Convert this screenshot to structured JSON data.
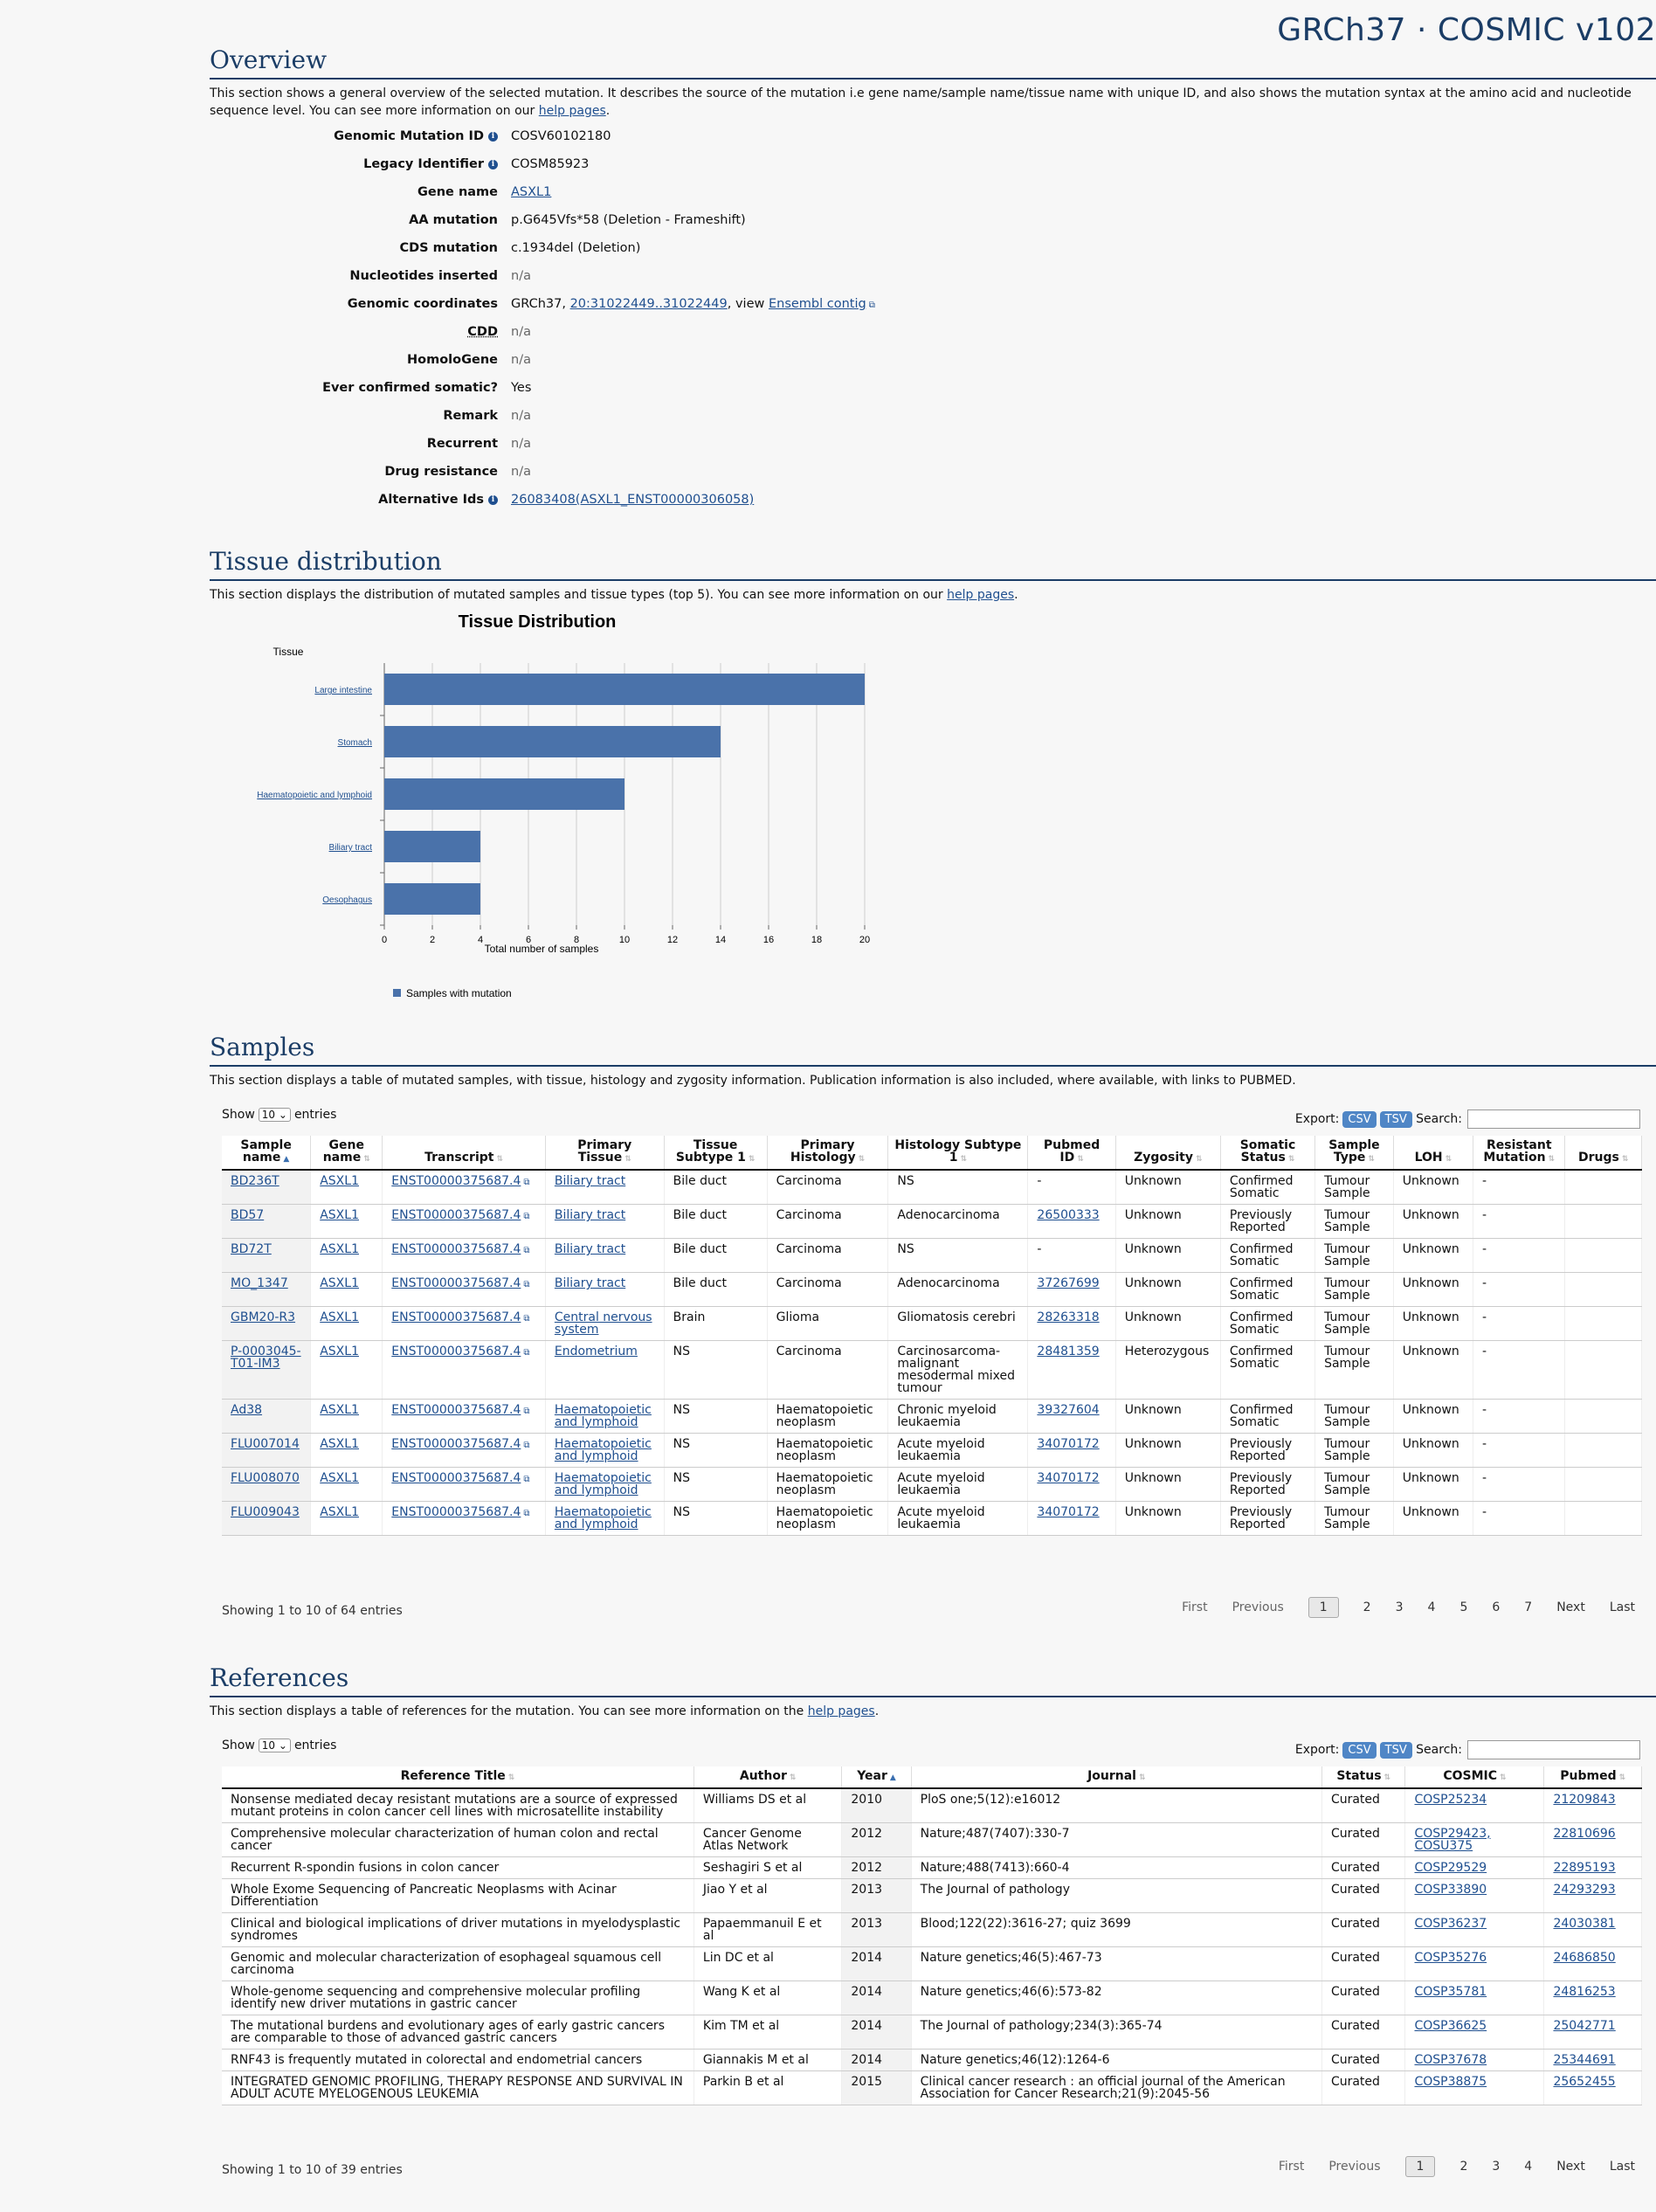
{
  "brand": "GRCh37 · COSMIC v102",
  "overview": {
    "title": "Overview",
    "desc_1": "This section shows a general overview of the selected mutation. It describes the source of the mutation i.e gene name/sample name/tissue name with unique ID, and also shows the mutation syntax at the amino acid and nucleotide sequence level. You can see more information on our ",
    "help_link": "help pages",
    "desc_end": ".",
    "rows": {
      "genomic_mutation_id": {
        "label": "Genomic Mutation ID",
        "value": "COSV60102180"
      },
      "legacy_identifier": {
        "label": "Legacy Identifier",
        "value": "COSM85923"
      },
      "gene_name": {
        "label": "Gene name",
        "value": "ASXL1"
      },
      "aa_mutation": {
        "label": "AA mutation",
        "value": "p.G645Vfs*58 (Deletion - Frameshift)"
      },
      "cds_mutation": {
        "label": "CDS mutation",
        "value": "c.1934del (Deletion)"
      },
      "nucleotides_inserted": {
        "label": "Nucleotides inserted",
        "value": "n/a"
      },
      "genomic_coordinates": {
        "label": "Genomic coordinates",
        "prefix": "GRCh37, ",
        "coord_link": "20:31022449..31022449",
        "mid": ", view ",
        "ensembl_link": "Ensembl contig"
      },
      "cdd": {
        "label": "CDD",
        "value": "n/a"
      },
      "homologene": {
        "label": "HomoloGene",
        "value": "n/a"
      },
      "ever_confirmed": {
        "label": "Ever confirmed somatic?",
        "value": "Yes"
      },
      "remark": {
        "label": "Remark",
        "value": "n/a"
      },
      "recurrent": {
        "label": "Recurrent",
        "value": "n/a"
      },
      "drug_resistance": {
        "label": "Drug resistance",
        "value": "n/a"
      },
      "alternative_ids": {
        "label": "Alternative Ids",
        "value": "26083408(ASXL1_ENST00000306058)"
      }
    }
  },
  "tissue": {
    "title": "Tissue distribution",
    "desc": "This section displays the distribution of mutated samples and tissue types (top 5). You can see more information on our ",
    "help_link": "help pages",
    "desc_end": "."
  },
  "chart_data": {
    "type": "bar",
    "orientation": "horizontal",
    "title": "Tissue Distribution",
    "ylabel": "Tissue",
    "xlabel": "Total number of samples",
    "categories": [
      "Large intestine",
      "Stomach",
      "Haematopoietic and lymphoid",
      "Biliary tract",
      "Oesophagus"
    ],
    "series": [
      {
        "name": "Samples with mutation",
        "values": [
          20,
          14,
          10,
          4,
          4
        ]
      }
    ],
    "xlim": [
      0,
      20
    ],
    "xticks": [
      0,
      2,
      4,
      6,
      8,
      10,
      12,
      14,
      16,
      18,
      20
    ],
    "grid": true,
    "legend": "bottom-left",
    "color": "#4a72aa"
  },
  "samples": {
    "title": "Samples",
    "desc": "This section displays a table of mutated samples, with tissue, histology and zygosity information. Publication information is also included, where available, with links to PUBMED.",
    "show": "Show",
    "entries": "entries",
    "page_size": "10",
    "export": "Export:",
    "csv": "CSV",
    "tsv": "TSV",
    "search": "Search:",
    "headers": [
      "Sample name",
      "Gene name",
      "Transcript",
      "Primary Tissue",
      "Tissue Subtype 1",
      "Primary Histology",
      "Histology Subtype 1",
      "Pubmed ID",
      "Zygosity",
      "Somatic Status",
      "Sample Type",
      "LOH",
      "Resistant Mutation",
      "Drugs"
    ],
    "rows": [
      [
        "BD236T",
        "ASXL1",
        "ENST00000375687.4",
        "Biliary tract",
        "Bile duct",
        "Carcinoma",
        "NS",
        "-",
        "Unknown",
        "Confirmed Somatic",
        "Tumour Sample",
        "Unknown",
        "-",
        ""
      ],
      [
        "BD57",
        "ASXL1",
        "ENST00000375687.4",
        "Biliary tract",
        "Bile duct",
        "Carcinoma",
        "Adenocarcinoma",
        "26500333",
        "Unknown",
        "Previously Reported",
        "Tumour Sample",
        "Unknown",
        "-",
        ""
      ],
      [
        "BD72T",
        "ASXL1",
        "ENST00000375687.4",
        "Biliary tract",
        "Bile duct",
        "Carcinoma",
        "NS",
        "-",
        "Unknown",
        "Confirmed Somatic",
        "Tumour Sample",
        "Unknown",
        "-",
        ""
      ],
      [
        "MO_1347",
        "ASXL1",
        "ENST00000375687.4",
        "Biliary tract",
        "Bile duct",
        "Carcinoma",
        "Adenocarcinoma",
        "37267699",
        "Unknown",
        "Confirmed Somatic",
        "Tumour Sample",
        "Unknown",
        "-",
        ""
      ],
      [
        "GBM20-R3",
        "ASXL1",
        "ENST00000375687.4",
        "Central nervous system",
        "Brain",
        "Glioma",
        "Gliomatosis cerebri",
        "28263318",
        "Unknown",
        "Confirmed Somatic",
        "Tumour Sample",
        "Unknown",
        "-",
        ""
      ],
      [
        "P-0003045-T01-IM3",
        "ASXL1",
        "ENST00000375687.4",
        "Endometrium",
        "NS",
        "Carcinoma",
        "Carcinosarcoma-malignant mesodermal mixed tumour",
        "28481359",
        "Heterozygous",
        "Confirmed Somatic",
        "Tumour Sample",
        "Unknown",
        "-",
        ""
      ],
      [
        "Ad38",
        "ASXL1",
        "ENST00000375687.4",
        "Haematopoietic and lymphoid",
        "NS",
        "Haematopoietic neoplasm",
        "Chronic myeloid leukaemia",
        "39327604",
        "Unknown",
        "Confirmed Somatic",
        "Tumour Sample",
        "Unknown",
        "-",
        ""
      ],
      [
        "FLU007014",
        "ASXL1",
        "ENST00000375687.4",
        "Haematopoietic and lymphoid",
        "NS",
        "Haematopoietic neoplasm",
        "Acute myeloid leukaemia",
        "34070172",
        "Unknown",
        "Previously Reported",
        "Tumour Sample",
        "Unknown",
        "-",
        ""
      ],
      [
        "FLU008070",
        "ASXL1",
        "ENST00000375687.4",
        "Haematopoietic and lymphoid",
        "NS",
        "Haematopoietic neoplasm",
        "Acute myeloid leukaemia",
        "34070172",
        "Unknown",
        "Previously Reported",
        "Tumour Sample",
        "Unknown",
        "-",
        ""
      ],
      [
        "FLU009043",
        "ASXL1",
        "ENST00000375687.4",
        "Haematopoietic and lymphoid",
        "NS",
        "Haematopoietic neoplasm",
        "Acute myeloid leukaemia",
        "34070172",
        "Unknown",
        "Previously Reported",
        "Tumour Sample",
        "Unknown",
        "-",
        ""
      ]
    ],
    "info": "Showing 1 to 10 of 64 entries",
    "pager": {
      "first": "First",
      "previous": "Previous",
      "pages": [
        "1",
        "2",
        "3",
        "4",
        "5",
        "6",
        "7"
      ],
      "next": "Next",
      "last": "Last"
    }
  },
  "references": {
    "title": "References",
    "desc": "This section displays a table of references for the mutation. You can see more information on the ",
    "help_link": "help pages",
    "desc_end": ".",
    "show": "Show",
    "entries": "entries",
    "page_size": "10",
    "export": "Export:",
    "csv": "CSV",
    "tsv": "TSV",
    "search": "Search:",
    "headers": [
      "Reference Title",
      "Author",
      "Year",
      "Journal",
      "Status",
      "COSMIC",
      "Pubmed"
    ],
    "rows": [
      [
        "Nonsense mediated decay resistant mutations are a source of expressed mutant proteins in colon cancer cell lines with microsatellite instability",
        "Williams DS et al",
        "2010",
        "PloS one;5(12):e16012",
        "Curated",
        "COSP25234",
        "21209843"
      ],
      [
        "Comprehensive molecular characterization of human colon and rectal cancer",
        "Cancer Genome Atlas Network",
        "2012",
        "Nature;487(7407):330-7",
        "Curated",
        "COSP29423, COSU375",
        "22810696"
      ],
      [
        "Recurrent R-spondin fusions in colon cancer",
        "Seshagiri S et al",
        "2012",
        "Nature;488(7413):660-4",
        "Curated",
        "COSP29529",
        "22895193"
      ],
      [
        "Whole Exome Sequencing of Pancreatic Neoplasms with Acinar Differentiation",
        "Jiao Y et al",
        "2013",
        "The Journal of pathology",
        "Curated",
        "COSP33890",
        "24293293"
      ],
      [
        "Clinical and biological implications of driver mutations in myelodysplastic syndromes",
        "Papaemmanuil E et al",
        "2013",
        "Blood;122(22):3616-27; quiz 3699",
        "Curated",
        "COSP36237",
        "24030381"
      ],
      [
        "Genomic and molecular characterization of esophageal squamous cell carcinoma",
        "Lin DC et al",
        "2014",
        "Nature genetics;46(5):467-73",
        "Curated",
        "COSP35276",
        "24686850"
      ],
      [
        "Whole-genome sequencing and comprehensive molecular profiling identify new driver mutations in gastric cancer",
        "Wang K et al",
        "2014",
        "Nature genetics;46(6):573-82",
        "Curated",
        "COSP35781",
        "24816253"
      ],
      [
        "The mutational burdens and evolutionary ages of early gastric cancers are comparable to those of advanced gastric cancers",
        "Kim TM et al",
        "2014",
        "The Journal of pathology;234(3):365-74",
        "Curated",
        "COSP36625",
        "25042771"
      ],
      [
        "RNF43 is frequently mutated in colorectal and endometrial cancers",
        "Giannakis M et al",
        "2014",
        "Nature genetics;46(12):1264-6",
        "Curated",
        "COSP37678",
        "25344691"
      ],
      [
        "INTEGRATED GENOMIC PROFILING, THERAPY RESPONSE AND SURVIVAL IN ADULT ACUTE MYELOGENOUS LEUKEMIA",
        "Parkin B et al",
        "2015",
        "Clinical cancer research : an official journal of the American Association for Cancer Research;21(9):2045-56",
        "Curated",
        "COSP38875",
        "25652455"
      ]
    ],
    "info": "Showing 1 to 10 of 39 entries",
    "pager": {
      "first": "First",
      "previous": "Previous",
      "pages": [
        "1",
        "2",
        "3",
        "4"
      ],
      "next": "Next",
      "last": "Last"
    }
  }
}
